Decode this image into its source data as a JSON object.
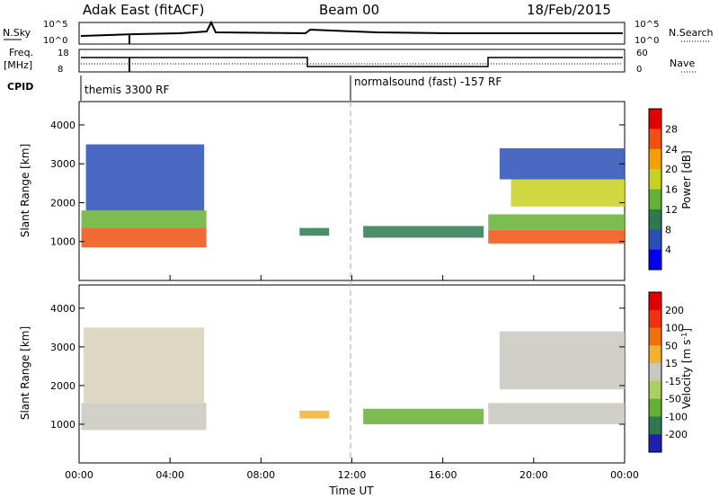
{
  "header": {
    "site": "Adak East (fitACF)",
    "beam": "Beam 00",
    "date": "18/Feb/2015"
  },
  "aux_panels": {
    "nsky_label": "N.Sky",
    "nsearch_label": "N.Search",
    "nsky_ticks": [
      "10^5",
      "10^0"
    ],
    "nsky_right_ticks": [
      "10^5",
      "10^0"
    ],
    "freq_label": [
      "Freq.",
      "[MHz]"
    ],
    "freq_ticks": [
      "18",
      "8"
    ],
    "nave_label": "Nave",
    "nave_ticks": [
      "60",
      "0"
    ],
    "cpid_label": "CPID",
    "cpid_segments": [
      {
        "label": "themis 3300 RF",
        "start_hour": 0
      },
      {
        "label": "normalsound (fast) -157 RF",
        "start_hour": 12
      }
    ]
  },
  "chart_data": [
    {
      "type": "heatmap",
      "name": "power",
      "ylabel": "Slant Range [km]",
      "ylim": [
        0,
        4600
      ],
      "yticks": [
        1000,
        2000,
        3000,
        4000
      ],
      "xlim_hours": [
        0,
        24
      ],
      "colorbar": {
        "label": "Power [dB]",
        "ticks": [
          "28",
          "24",
          "20",
          "16",
          "12",
          "8",
          "4"
        ],
        "colors": [
          "#0000ee",
          "#2a4fb8",
          "#2d7a4f",
          "#66b033",
          "#c8d020",
          "#f5a000",
          "#f05010",
          "#e00000"
        ]
      },
      "regions": [
        {
          "x0": 0.1,
          "x1": 5.6,
          "y0": 850,
          "y1": 1350,
          "color": "#f05010"
        },
        {
          "x0": 0.1,
          "x1": 5.6,
          "y0": 1350,
          "y1": 1800,
          "color": "#66b033"
        },
        {
          "x0": 0.3,
          "x1": 5.5,
          "y0": 1800,
          "y1": 3500,
          "color": "#2a4fb8"
        },
        {
          "x0": 9.7,
          "x1": 11.0,
          "y0": 1150,
          "y1": 1350,
          "color": "#2d7a4f"
        },
        {
          "x0": 12.5,
          "x1": 17.8,
          "y0": 1100,
          "y1": 1400,
          "color": "#2d7a4f"
        },
        {
          "x0": 18.0,
          "x1": 24.0,
          "y0": 950,
          "y1": 1300,
          "color": "#f05010"
        },
        {
          "x0": 18.0,
          "x1": 24.0,
          "y0": 1300,
          "y1": 1700,
          "color": "#66b033"
        },
        {
          "x0": 19.0,
          "x1": 24.0,
          "y0": 1900,
          "y1": 2600,
          "color": "#c8d020"
        },
        {
          "x0": 18.5,
          "x1": 24.0,
          "y0": 2600,
          "y1": 3400,
          "color": "#2a4fb8"
        }
      ]
    },
    {
      "type": "heatmap",
      "name": "velocity",
      "ylabel": "Slant Range [km]",
      "ylim": [
        0,
        4600
      ],
      "yticks": [
        1000,
        2000,
        3000,
        4000
      ],
      "xlim_hours": [
        0,
        24
      ],
      "xticks": [
        "00:00",
        "04:00",
        "08:00",
        "12:00",
        "16:00",
        "20:00",
        "00:00"
      ],
      "xlabel": "Time UT",
      "colorbar": {
        "label": "Velocity [m s",
        "label_sup": "-1",
        "label_end": "]",
        "ticks": [
          "200",
          "100",
          "50",
          "15",
          "-15",
          "-50",
          "-100",
          "-200"
        ],
        "colors": [
          "#2020b0",
          "#2d7a4f",
          "#66b033",
          "#aad060",
          "#c8c8c0",
          "#f5b030",
          "#f07010",
          "#f03010",
          "#e00000"
        ]
      },
      "regions": [
        {
          "x0": 0.1,
          "x1": 5.6,
          "y0": 850,
          "y1": 1550,
          "color": "#c8c8c0"
        },
        {
          "x0": 0.2,
          "x1": 5.5,
          "y0": 1550,
          "y1": 3500,
          "color": "#d8d0b8"
        },
        {
          "x0": 9.7,
          "x1": 11.0,
          "y0": 1150,
          "y1": 1350,
          "color": "#f5b030"
        },
        {
          "x0": 12.5,
          "x1": 17.8,
          "y0": 1000,
          "y1": 1400,
          "color": "#66b033"
        },
        {
          "x0": 18.0,
          "x1": 24.0,
          "y0": 1000,
          "y1": 1550,
          "color": "#c8c8c0"
        },
        {
          "x0": 18.5,
          "x1": 24.0,
          "y0": 1900,
          "y1": 3400,
          "color": "#c8c8c0"
        }
      ]
    }
  ]
}
